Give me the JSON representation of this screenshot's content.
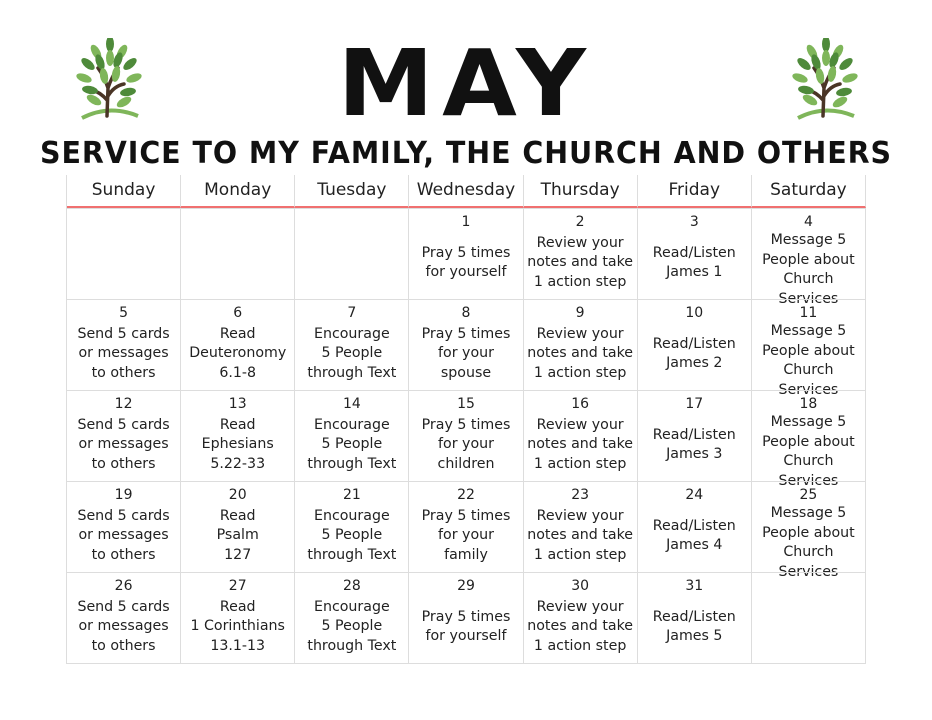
{
  "title": "MAY",
  "subtitle": "SERVICE TO MY FAMILY, THE CHURCH AND OTHERS",
  "logo_icon": "tree-icon",
  "colors": {
    "header_rule": "#f07070",
    "leaf_dark": "#4e8a3a",
    "leaf_light": "#7fb65a",
    "trunk": "#4a3526"
  },
  "weekdays": [
    "Sunday",
    "Monday",
    "Tuesday",
    "Wednesday",
    "Thursday",
    "Friday",
    "Saturday"
  ],
  "weeks": [
    [
      {
        "day": "",
        "text": ""
      },
      {
        "day": "",
        "text": ""
      },
      {
        "day": "",
        "text": ""
      },
      {
        "day": "1",
        "text": "Pray 5 times\nfor  yourself"
      },
      {
        "day": "2",
        "text": "Review your\nnotes and take\n1 action step"
      },
      {
        "day": "3",
        "text": "Read/Listen\nJames 1"
      },
      {
        "day": "4",
        "text": "Message 5\nPeople about\nChurch Services"
      }
    ],
    [
      {
        "day": "5",
        "text": "Send 5 cards\nor messages\nto others"
      },
      {
        "day": "6",
        "text": "Read\nDeuteronomy\n6.1-8"
      },
      {
        "day": "7",
        "text": "Encourage\n5 People\nthrough Text"
      },
      {
        "day": "8",
        "text": "Pray 5 times\nfor your\nspouse"
      },
      {
        "day": "9",
        "text": "Review your\nnotes and take\n1 action step"
      },
      {
        "day": "10",
        "text": "Read/Listen\nJames 2"
      },
      {
        "day": "11",
        "text": "Message 5\nPeople about\nChurch Services"
      }
    ],
    [
      {
        "day": "12",
        "text": "Send 5 cards\nor messages\nto others"
      },
      {
        "day": "13",
        "text": "Read\nEphesians\n5.22-33"
      },
      {
        "day": "14",
        "text": "Encourage\n5 People\nthrough Text"
      },
      {
        "day": "15",
        "text": "Pray 5 times\nfor your\nchildren"
      },
      {
        "day": "16",
        "text": "Review your\nnotes and take\n1 action step"
      },
      {
        "day": "17",
        "text": "Read/Listen\nJames 3"
      },
      {
        "day": "18",
        "text": "Message 5\nPeople about\nChurch Services"
      }
    ],
    [
      {
        "day": "19",
        "text": "Send 5 cards\nor messages\nto others"
      },
      {
        "day": "20",
        "text": "Read\nPsalm\n127"
      },
      {
        "day": "21",
        "text": "Encourage\n5 People\nthrough Text"
      },
      {
        "day": "22",
        "text": "Pray 5 times\nfor your\nfamily"
      },
      {
        "day": "23",
        "text": "Review your\nnotes and take\n1 action step"
      },
      {
        "day": "24",
        "text": "Read/Listen\nJames 4"
      },
      {
        "day": "25",
        "text": "Message 5\nPeople about\nChurch Services"
      }
    ],
    [
      {
        "day": "26",
        "text": "Send 5 cards\nor messages\nto others"
      },
      {
        "day": "27",
        "text": "Read\n1 Corinthians\n13.1-13"
      },
      {
        "day": "28",
        "text": "Encourage\n5 People\nthrough Text"
      },
      {
        "day": "29",
        "text": "Pray 5 times\nfor  yourself"
      },
      {
        "day": "30",
        "text": "Review your\nnotes and take\n1 action step"
      },
      {
        "day": "31",
        "text": "Read/Listen\nJames 5"
      },
      {
        "day": "",
        "text": ""
      }
    ]
  ]
}
